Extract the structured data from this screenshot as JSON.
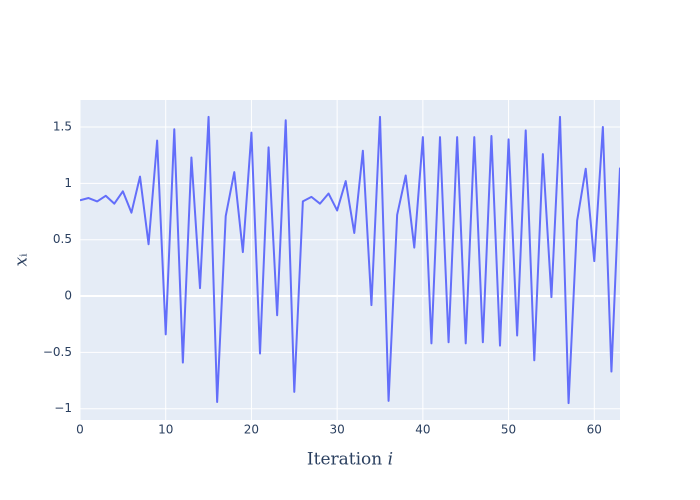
{
  "chart_data": {
    "type": "line",
    "x_label": "Iteration 𝑖",
    "y_label": "𝑥ᵢ",
    "x": [
      0,
      1,
      2,
      3,
      4,
      5,
      6,
      7,
      8,
      9,
      10,
      11,
      12,
      13,
      14,
      15,
      16,
      17,
      18,
      19,
      20,
      21,
      22,
      23,
      24,
      25,
      26,
      27,
      28,
      29,
      30,
      31,
      32,
      33,
      34,
      35,
      36,
      37,
      38,
      39,
      40,
      41,
      42,
      43,
      44,
      45,
      46,
      47,
      48,
      49,
      50,
      51,
      52,
      53,
      54,
      55,
      56,
      57,
      58,
      59,
      60,
      61,
      62,
      63
    ],
    "values": [
      0.85,
      0.87,
      0.84,
      0.89,
      0.82,
      0.93,
      0.74,
      1.06,
      0.46,
      1.38,
      -0.34,
      1.48,
      -0.59,
      1.23,
      0.07,
      1.59,
      -0.94,
      0.71,
      1.1,
      0.39,
      1.45,
      -0.51,
      1.32,
      -0.17,
      1.56,
      -0.85,
      0.84,
      0.88,
      0.82,
      0.91,
      0.76,
      1.02,
      0.56,
      1.29,
      -0.08,
      1.59,
      -0.93,
      0.72,
      1.07,
      0.43,
      1.41,
      -0.42,
      1.41,
      -0.41,
      1.41,
      -0.42,
      1.41,
      -0.41,
      1.42,
      -0.44,
      1.39,
      -0.35,
      1.47,
      -0.57,
      1.26,
      -0.01,
      1.59,
      -0.95,
      0.67,
      1.13,
      0.31,
      1.5,
      -0.67,
      1.14
    ],
    "color": "#636efa",
    "xlim": [
      0,
      63
    ],
    "ylim": [
      -1.1,
      1.74
    ],
    "xticks": [
      0,
      10,
      20,
      30,
      40,
      50,
      60
    ],
    "yticks": [
      {
        "value": -1,
        "label": "−1"
      },
      {
        "value": -0.5,
        "label": "−0.5"
      },
      0,
      0.5,
      1,
      1.5
    ],
    "grid": true
  }
}
